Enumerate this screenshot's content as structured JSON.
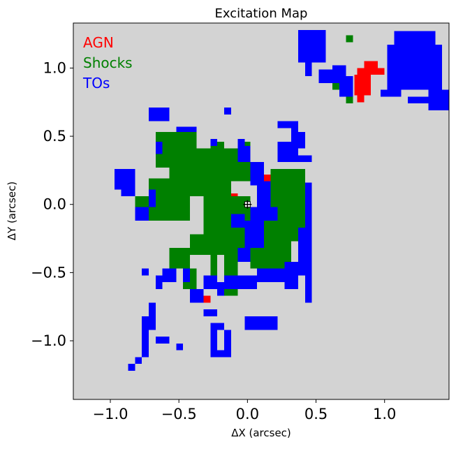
{
  "chart_data": {
    "type": "heatmap",
    "title": "Excitation Map",
    "xlabel": "ΔX (arcsec)",
    "ylabel": "ΔY (arcsec)",
    "xlim": [
      -1.27,
      1.47
    ],
    "ylim": [
      -1.43,
      1.33
    ],
    "cell_size_arcsec": 0.05,
    "background_color": "#d3d3d3",
    "grid": false,
    "legend_placement": "top-left",
    "xticks": [
      {
        "value": -1.0,
        "label": "−1.0"
      },
      {
        "value": -0.5,
        "label": "−0.5"
      },
      {
        "value": 0.0,
        "label": "0.0"
      },
      {
        "value": 0.5,
        "label": "0.5"
      },
      {
        "value": 1.0,
        "label": "1.0"
      }
    ],
    "yticks": [
      {
        "value": 1.0,
        "label": "1.0"
      },
      {
        "value": 0.5,
        "label": "0.5"
      },
      {
        "value": 0.0,
        "label": "0.0"
      },
      {
        "value": -0.5,
        "label": "−0.5"
      },
      {
        "value": -1.0,
        "label": "−1.0"
      }
    ],
    "center_marker": {
      "x": 0.0,
      "y": 0.0,
      "symbol": "cross"
    },
    "series": [
      {
        "name": "AGN",
        "color": "#ff0000",
        "rects": [
          [
            0.85,
            1.0,
            0.95,
            1.05
          ],
          [
            0.8,
            0.95,
            1.0,
            1.0
          ],
          [
            0.78,
            0.9,
            0.9,
            0.95
          ],
          [
            0.78,
            0.8,
            0.9,
            0.9
          ],
          [
            0.8,
            0.75,
            0.85,
            0.8
          ],
          [
            -0.12,
            0.0,
            -0.07,
            0.08
          ],
          [
            0.12,
            0.17,
            0.17,
            0.22
          ],
          [
            -0.32,
            -0.72,
            -0.27,
            -0.67
          ]
        ]
      },
      {
        "name": "Shocks",
        "color": "#008000",
        "rects": [
          [
            -0.67,
            0.27,
            -0.37,
            0.53
          ],
          [
            -0.57,
            0.48,
            -0.37,
            0.53
          ],
          [
            -0.57,
            0.17,
            0.02,
            0.41
          ],
          [
            -0.72,
            0.06,
            -0.12,
            0.19
          ],
          [
            -0.82,
            -0.12,
            -0.42,
            0.06
          ],
          [
            -0.32,
            -0.27,
            0.02,
            0.06
          ],
          [
            -0.22,
            0.17,
            -0.02,
            0.36
          ],
          [
            -0.42,
            -0.37,
            -0.12,
            -0.22
          ],
          [
            -0.57,
            -0.47,
            -0.42,
            -0.32
          ],
          [
            -0.47,
            -0.62,
            -0.37,
            -0.47
          ],
          [
            -0.27,
            -0.52,
            -0.22,
            -0.37
          ],
          [
            -0.17,
            -0.67,
            -0.07,
            -0.42
          ],
          [
            -0.17,
            -0.42,
            -0.02,
            -0.22
          ],
          [
            -0.12,
            -0.32,
            0.02,
            -0.12
          ],
          [
            0.02,
            -0.47,
            0.32,
            -0.12
          ],
          [
            0.12,
            -0.27,
            0.42,
            0.11
          ],
          [
            0.17,
            0.06,
            0.42,
            0.26
          ],
          [
            -0.27,
            0.41,
            -0.17,
            0.46
          ],
          [
            -0.07,
            0.41,
            0.02,
            0.46
          ],
          [
            0.72,
            0.74,
            0.77,
            0.79
          ],
          [
            0.62,
            0.84,
            0.67,
            0.89
          ],
          [
            0.72,
            1.19,
            0.77,
            1.24
          ]
        ]
      },
      {
        "name": "TOs",
        "color": "#0000ff",
        "rects": [
          [
            0.37,
            1.04,
            0.57,
            1.28
          ],
          [
            0.42,
            1.24,
            0.52,
            1.28
          ],
          [
            0.52,
            1.09,
            0.57,
            1.19
          ],
          [
            0.42,
            0.94,
            0.47,
            1.04
          ],
          [
            0.52,
            0.89,
            0.72,
            0.99
          ],
          [
            0.67,
            0.79,
            0.77,
            0.94
          ],
          [
            0.62,
            0.94,
            0.72,
            1.02
          ],
          [
            0.97,
            0.79,
            1.12,
            0.84
          ],
          [
            1.02,
            0.84,
            1.42,
            1.17
          ],
          [
            1.07,
            1.17,
            1.37,
            1.27
          ],
          [
            1.32,
            0.69,
            1.47,
            0.84
          ],
          [
            1.17,
            0.74,
            1.32,
            0.79
          ],
          [
            0.02,
            -0.12,
            0.22,
            -0.02
          ],
          [
            0.07,
            -0.02,
            0.17,
            0.17
          ],
          [
            0.02,
            0.14,
            0.12,
            0.31
          ],
          [
            -0.07,
            0.31,
            0.02,
            0.43
          ],
          [
            0.22,
            0.31,
            0.37,
            0.46
          ],
          [
            0.32,
            0.36,
            0.37,
            0.61
          ],
          [
            0.22,
            0.56,
            0.37,
            0.61
          ],
          [
            0.37,
            0.41,
            0.42,
            0.53
          ],
          [
            0.37,
            0.31,
            0.47,
            0.36
          ],
          [
            0.42,
            -0.42,
            0.47,
            0.16
          ],
          [
            0.37,
            -0.52,
            0.47,
            -0.17
          ],
          [
            0.27,
            -0.62,
            0.37,
            -0.42
          ],
          [
            0.42,
            -0.72,
            0.47,
            -0.52
          ],
          [
            0.07,
            -0.57,
            0.27,
            -0.47
          ],
          [
            -0.17,
            -0.62,
            0.07,
            -0.52
          ],
          [
            -0.22,
            -0.67,
            -0.17,
            -0.57
          ],
          [
            -0.07,
            -0.42,
            0.02,
            -0.32
          ],
          [
            -0.02,
            -0.32,
            0.12,
            -0.12
          ],
          [
            -0.12,
            -0.17,
            -0.02,
            -0.07
          ],
          [
            -0.42,
            -0.72,
            -0.32,
            -0.62
          ],
          [
            -0.32,
            -0.62,
            -0.22,
            -0.52
          ],
          [
            -0.47,
            -0.57,
            -0.42,
            -0.47
          ],
          [
            -0.62,
            -0.57,
            -0.52,
            -0.47
          ],
          [
            -0.82,
            -0.12,
            -0.72,
            -0.02
          ],
          [
            -0.92,
            0.06,
            -0.82,
            0.16
          ],
          [
            -0.97,
            0.11,
            -0.82,
            0.26
          ],
          [
            -0.97,
            0.16,
            -0.92,
            0.26
          ],
          [
            -0.87,
            0.16,
            -0.82,
            0.26
          ],
          [
            -0.72,
            -0.02,
            -0.67,
            0.11
          ],
          [
            -0.72,
            0.61,
            -0.57,
            0.71
          ],
          [
            -0.52,
            0.53,
            -0.37,
            0.57
          ],
          [
            -0.17,
            0.66,
            -0.12,
            0.71
          ],
          [
            -0.67,
            0.37,
            -0.62,
            0.46
          ],
          [
            -0.27,
            0.43,
            -0.22,
            0.48
          ],
          [
            -0.07,
            0.43,
            -0.02,
            0.48
          ],
          [
            -0.77,
            -0.52,
            -0.72,
            -0.47
          ],
          [
            -0.67,
            -0.62,
            -0.62,
            -0.52
          ],
          [
            -0.72,
            -0.82,
            -0.67,
            -0.72
          ],
          [
            -0.77,
            -0.92,
            -0.67,
            -0.82
          ],
          [
            -0.77,
            -1.07,
            -0.72,
            -0.92
          ],
          [
            -0.77,
            -1.12,
            -0.72,
            -1.07
          ],
          [
            -0.82,
            -1.17,
            -0.77,
            -1.12
          ],
          [
            -0.87,
            -1.22,
            -0.82,
            -1.17
          ],
          [
            -0.67,
            -1.02,
            -0.57,
            -0.97
          ],
          [
            -0.52,
            -1.07,
            -0.47,
            -1.02
          ],
          [
            -0.32,
            -0.82,
            -0.22,
            -0.77
          ],
          [
            -0.27,
            -1.07,
            -0.22,
            -0.87
          ],
          [
            -0.27,
            -1.12,
            -0.12,
            -1.07
          ],
          [
            -0.17,
            -1.07,
            -0.12,
            -0.92
          ],
          [
            -0.22,
            -0.92,
            -0.17,
            -0.87
          ],
          [
            -0.02,
            -0.92,
            0.22,
            -0.82
          ],
          [
            0.12,
            -0.12,
            0.17,
            -0.07
          ]
        ]
      }
    ]
  }
}
